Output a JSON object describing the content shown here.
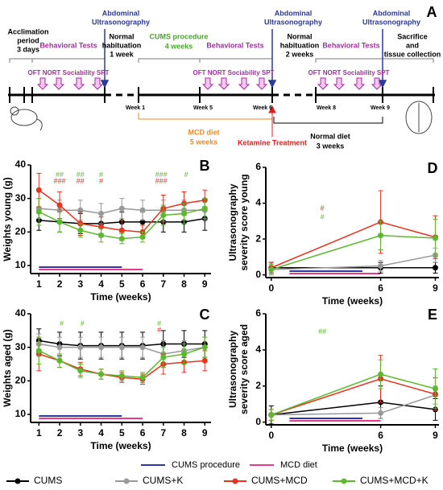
{
  "timeline": {
    "label": "A",
    "acclimation": [
      "Acclimation",
      "period",
      "3 days"
    ],
    "behavioral": [
      "Behavioral Tests",
      "Behavioral Tests",
      "Behavioral Tests"
    ],
    "ultrasound": [
      [
        "Abdominal",
        "Ultrasonography"
      ],
      [
        "Abdominal",
        "Ultrasonography"
      ],
      [
        "Abdominal",
        "Ultrasonography"
      ]
    ],
    "habituation1": [
      "Normal",
      "habituation",
      "1 week"
    ],
    "cums": [
      "CUMS procedure",
      "4 weeks"
    ],
    "habituation2": [
      "Normal",
      "habituation",
      "2 weeks"
    ],
    "sacrifice": [
      "Sacrifice",
      "and",
      "tissue collection"
    ],
    "tests": [
      "OFT NORT Sociability SPT",
      "OFT NORT Sociability SPT",
      "OFT NORT Sociability SPT"
    ],
    "weeks": [
      "Week 1",
      "Week 5",
      "Week 6",
      "Week 8",
      "Week 9"
    ],
    "mcd": [
      "MCD diet",
      "5 weeks"
    ],
    "ketamine": "Ketamine Treatment",
    "normal_diet": [
      "Normal diet",
      "3 weeks"
    ]
  },
  "legend": {
    "periods": [
      {
        "name": "CUMS procedure",
        "color": "#3333aa"
      },
      {
        "name": "MCD diet",
        "color": "#e83a8a"
      }
    ],
    "series": [
      {
        "name": "CUMS",
        "color": "#000000"
      },
      {
        "name": "CUMS+K",
        "color": "#999999"
      },
      {
        "name": "CUMS+MCD",
        "color": "#e8331f"
      },
      {
        "name": "CUMS+MCD+K",
        "color": "#5cb82e"
      }
    ]
  },
  "chart_data": [
    {
      "type": "line",
      "label": "B",
      "ylabel": [
        "Weights young (g)"
      ],
      "xlabel": "Time (weeks)",
      "x": [
        1,
        2,
        3,
        4,
        5,
        6,
        7,
        8,
        9
      ],
      "xlim": [
        0.6,
        9.3
      ],
      "xticks": [
        1,
        2,
        3,
        4,
        5,
        6,
        7,
        8,
        9
      ],
      "ylim": [
        7.6,
        40
      ],
      "yticks": [
        10,
        20,
        30,
        40
      ],
      "series": [
        {
          "color": "#000000",
          "values": [
            23.5,
            23,
            22.5,
            22.5,
            23,
            23,
            23,
            23,
            24
          ],
          "errors": [
            3,
            3,
            3,
            3,
            3,
            3,
            3,
            3,
            3.5
          ]
        },
        {
          "color": "#999999",
          "values": [
            27,
            26.5,
            26.5,
            25.5,
            27,
            26.5,
            26.5,
            26.5,
            26.5
          ],
          "errors": [
            3,
            3,
            3,
            3,
            3,
            3,
            3,
            3,
            3
          ]
        },
        {
          "color": "#e8331f",
          "values": [
            32.5,
            28,
            22.5,
            21.5,
            20.5,
            20,
            27,
            28.5,
            29.5
          ],
          "errors": [
            5,
            4,
            3.5,
            3,
            3,
            2,
            4,
            3.5,
            3
          ]
        },
        {
          "color": "#5cb82e",
          "values": [
            26,
            23,
            20.5,
            19,
            18,
            18.5,
            25,
            25.5,
            27
          ],
          "errors": [
            4,
            3,
            2,
            2,
            1.5,
            1.5,
            3,
            3,
            3
          ]
        }
      ],
      "periods": [
        {
          "color": "#3333aa",
          "start": 1,
          "end": 5
        },
        {
          "color": "#e83a8a",
          "start": 1,
          "end": 6
        }
      ],
      "annotations": [
        {
          "text": "##",
          "x": 2,
          "y": 37,
          "color": "#5cb82e"
        },
        {
          "text": "###",
          "x": 2,
          "y": 35,
          "color": "#e8331f"
        },
        {
          "text": "##",
          "x": 3,
          "y": 37,
          "color": "#5cb82e"
        },
        {
          "text": "##",
          "x": 3,
          "y": 35,
          "color": "#e8331f"
        },
        {
          "text": "#",
          "x": 4,
          "y": 37,
          "color": "#5cb82e"
        },
        {
          "text": "#",
          "x": 4,
          "y": 35,
          "color": "#e8331f"
        },
        {
          "text": "###",
          "x": 6.9,
          "y": 37,
          "color": "#5cb82e"
        },
        {
          "text": "###",
          "x": 6.9,
          "y": 35,
          "color": "#e8331f"
        },
        {
          "text": "#",
          "x": 8.1,
          "y": 37,
          "color": "#5cb82e"
        }
      ]
    },
    {
      "type": "line",
      "label": "C",
      "ylabel": [
        "Weights aged (g)"
      ],
      "xlabel": "Time (weeks)",
      "x": [
        1,
        2,
        3,
        4,
        5,
        6,
        7,
        8,
        9
      ],
      "xlim": [
        0.6,
        9.3
      ],
      "xticks": [
        1,
        2,
        3,
        4,
        5,
        6,
        7,
        8,
        9
      ],
      "ylim": [
        7.6,
        40
      ],
      "yticks": [
        10,
        20,
        30,
        40
      ],
      "series": [
        {
          "color": "#000000",
          "values": [
            32,
            31,
            30.5,
            30.5,
            30.5,
            30.5,
            31,
            31,
            31
          ],
          "errors": [
            3.5,
            3.5,
            4,
            4,
            4,
            4,
            4,
            4,
            4
          ]
        },
        {
          "color": "#999999",
          "values": [
            31,
            30,
            30,
            30,
            30,
            30,
            28,
            29,
            30
          ],
          "errors": [
            3,
            3,
            3,
            3,
            3,
            3,
            4,
            3,
            3
          ]
        },
        {
          "color": "#e8331f",
          "values": [
            28,
            26,
            23.5,
            22,
            21,
            20.5,
            25,
            25.5,
            26
          ],
          "errors": [
            5,
            2,
            2,
            1.5,
            1.5,
            1.5,
            3,
            3,
            3
          ]
        },
        {
          "color": "#5cb82e",
          "values": [
            29,
            26,
            23,
            22,
            21.5,
            21,
            27,
            28,
            30
          ],
          "errors": [
            4,
            2,
            2,
            1.5,
            1.5,
            1.5,
            3,
            3,
            3
          ]
        }
      ],
      "periods": [
        {
          "color": "#3333aa",
          "start": 1,
          "end": 5
        },
        {
          "color": "#e83a8a",
          "start": 1,
          "end": 6
        }
      ],
      "annotations": [
        {
          "text": "#",
          "x": 2.1,
          "y": 37,
          "color": "#5cb82e"
        },
        {
          "text": "#",
          "x": 3.1,
          "y": 37,
          "color": "#5cb82e"
        },
        {
          "text": "#",
          "x": 6.8,
          "y": 37,
          "color": "#5cb82e"
        },
        {
          "text": "#",
          "x": 6.8,
          "y": 35,
          "color": "#e8331f"
        }
      ]
    },
    {
      "type": "line",
      "label": "D",
      "ylabel": [
        "Ultrasonography",
        "severity score young"
      ],
      "xlabel": "Time (weeks)",
      "x": [
        0,
        6,
        9
      ],
      "xlim": [
        -0.3,
        9.2
      ],
      "xticks": [
        0,
        6,
        9
      ],
      "ylim": [
        -0.15,
        6
      ],
      "yticks": [
        0,
        2,
        4,
        6
      ],
      "series": [
        {
          "color": "#000000",
          "values": [
            0.4,
            0.4,
            0.4
          ],
          "errors": [
            0.3,
            0.3,
            0.3
          ]
        },
        {
          "color": "#999999",
          "values": [
            0.3,
            0.5,
            1.1
          ],
          "errors": [
            0.3,
            0.3,
            0.4
          ]
        },
        {
          "color": "#e8331f",
          "values": [
            0.4,
            2.95,
            2.1
          ],
          "errors": [
            0.3,
            1.75,
            1.2
          ]
        },
        {
          "color": "#5cb82e",
          "values": [
            0.3,
            2.2,
            2.05
          ],
          "errors": [
            0.3,
            0.8,
            1.05
          ]
        }
      ],
      "periods": [
        {
          "color": "#3333aa",
          "start": 1,
          "end": 5
        },
        {
          "color": "#e83a8a",
          "start": 1,
          "end": 6
        }
      ],
      "annotations": [
        {
          "text": "#",
          "x": 2.8,
          "y": 3.7,
          "color": "#e8331f"
        },
        {
          "text": "#",
          "x": 2.8,
          "y": 3.2,
          "color": "#5cb82e"
        }
      ]
    },
    {
      "type": "line",
      "label": "E",
      "ylabel": [
        "Ultrasonography",
        "severity score aged"
      ],
      "xlabel": "Time (weeks)",
      "x": [
        0,
        6,
        9
      ],
      "xlim": [
        -0.3,
        9.2
      ],
      "xticks": [
        0,
        6,
        9
      ],
      "ylim": [
        -0.15,
        6
      ],
      "yticks": [
        0,
        2,
        4,
        6
      ],
      "series": [
        {
          "color": "#000000",
          "values": [
            0.4,
            1.1,
            0.7
          ],
          "errors": [
            0.5,
            0.9,
            0.6
          ]
        },
        {
          "color": "#999999",
          "values": [
            0.4,
            0.5,
            1.5
          ],
          "errors": [
            0.3,
            0.3,
            0.5
          ]
        },
        {
          "color": "#e8331f",
          "values": [
            0.4,
            2.4,
            1.55
          ],
          "errors": [
            0.3,
            1.3,
            0.9
          ]
        },
        {
          "color": "#5cb82e",
          "values": [
            0.4,
            2.65,
            1.85
          ],
          "errors": [
            0.3,
            0.8,
            1.1
          ]
        }
      ],
      "periods": [
        {
          "color": "#3333aa",
          "start": 1,
          "end": 5
        },
        {
          "color": "#e83a8a",
          "start": 1,
          "end": 6
        }
      ],
      "annotations": [
        {
          "text": "##",
          "x": 2.8,
          "y": 5,
          "color": "#5cb82e"
        }
      ]
    }
  ]
}
